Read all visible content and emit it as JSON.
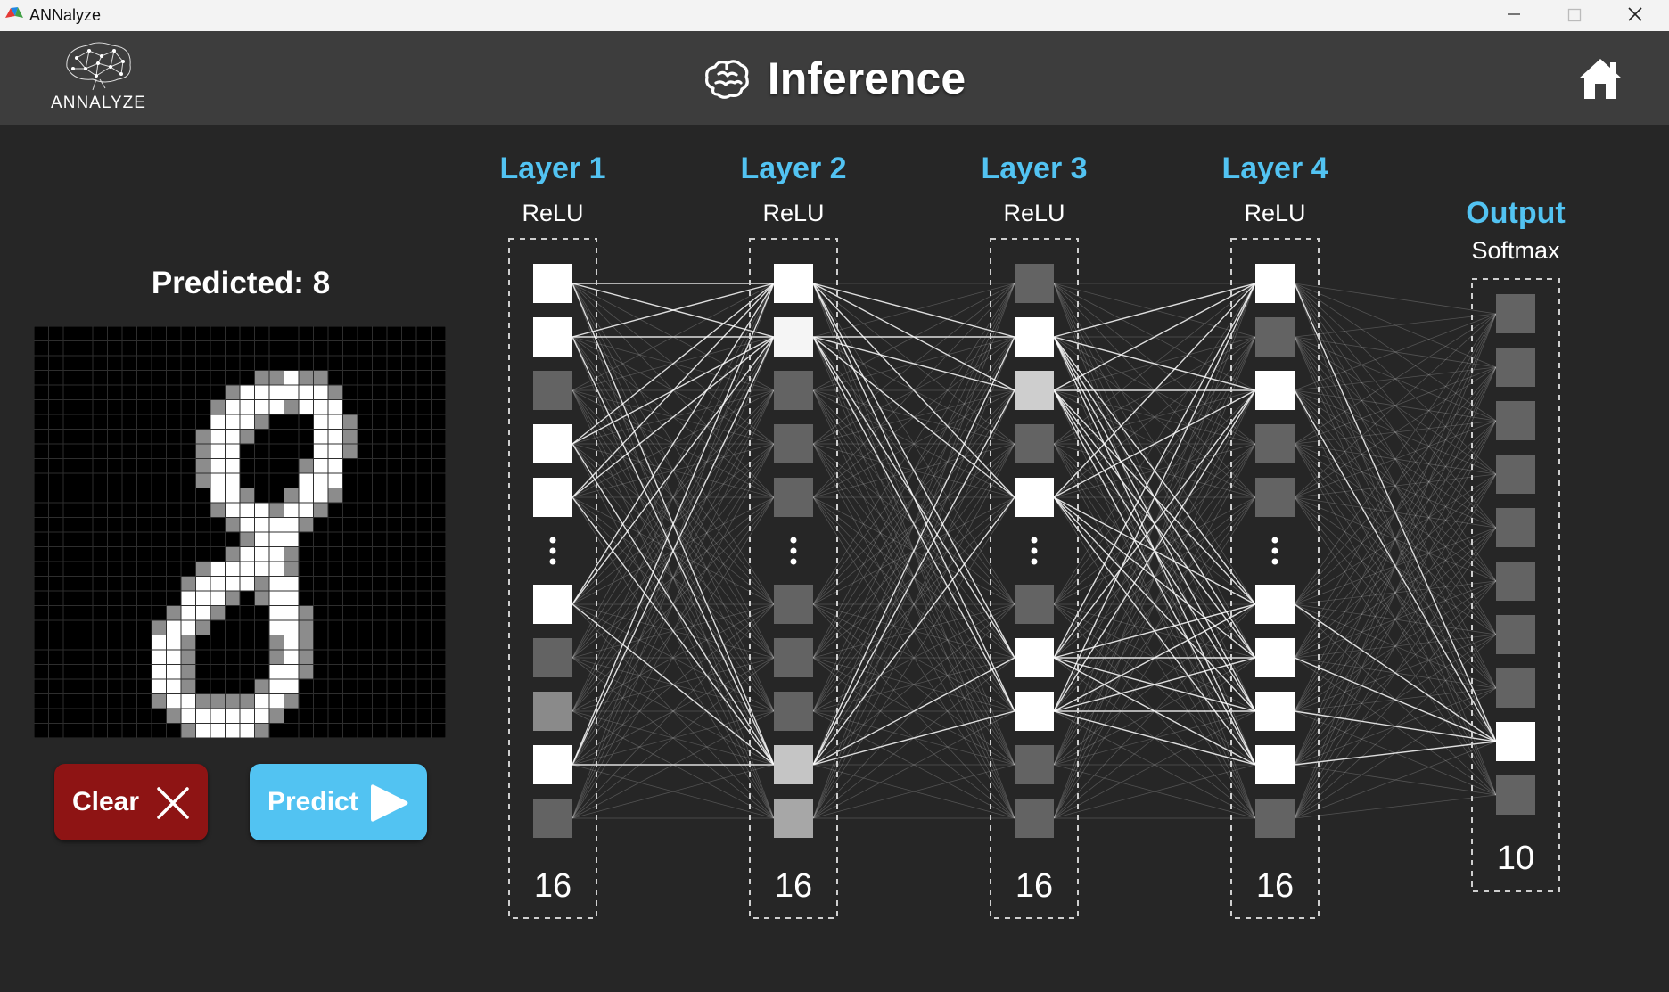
{
  "window": {
    "title": "ANNalyze",
    "controls": [
      "minimize",
      "maximize",
      "close"
    ]
  },
  "header": {
    "logo_text": "ANNALYZE",
    "title": "Inference",
    "title_icon": "brain-icon",
    "home_icon": "home-icon"
  },
  "prediction": {
    "label": "Predicted: 8"
  },
  "canvas": {
    "grid_size": 28,
    "drawn_digit": "8"
  },
  "buttons": {
    "clear_label": "Clear",
    "predict_label": "Predict"
  },
  "network": {
    "layers": [
      {
        "title": "Layer 1",
        "activation": "ReLU",
        "size": "16",
        "neurons": [
          1,
          1,
          0.2,
          1,
          1,
          null,
          1,
          0.2,
          0.4,
          1,
          0.2
        ]
      },
      {
        "title": "Layer 2",
        "activation": "ReLU",
        "size": "16",
        "neurons": [
          1,
          0.95,
          0.2,
          0.2,
          0.2,
          null,
          0.2,
          0.2,
          0.2,
          0.7,
          0.55
        ]
      },
      {
        "title": "Layer 3",
        "activation": "ReLU",
        "size": "16",
        "neurons": [
          0.2,
          1,
          0.75,
          0.2,
          1,
          null,
          0.2,
          1,
          1,
          0.2,
          0.2
        ]
      },
      {
        "title": "Layer 4",
        "activation": "ReLU",
        "size": "16",
        "neurons": [
          1,
          0.2,
          1,
          0.2,
          0.2,
          null,
          1,
          1,
          1,
          1,
          0.2
        ]
      },
      {
        "title": "Output",
        "activation": "Softmax",
        "size": "10",
        "neurons": [
          0.2,
          0.2,
          0.2,
          0.2,
          0.2,
          0.2,
          0.2,
          0.2,
          1,
          0.2
        ]
      }
    ]
  },
  "colors": {
    "accent_blue": "#52c3f2",
    "clear_red": "#8e1414",
    "background": "#262626",
    "header": "#3d3d3d",
    "layer_title": "#52c3f2"
  }
}
